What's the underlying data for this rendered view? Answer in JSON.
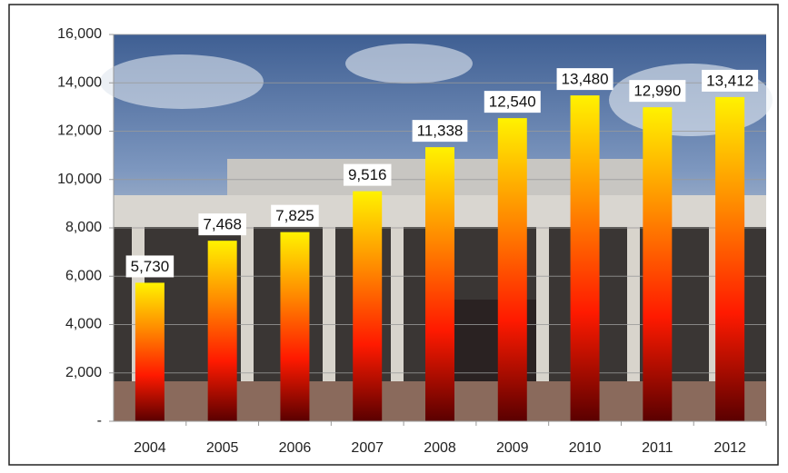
{
  "chart_data": {
    "type": "bar",
    "categories": [
      "2004",
      "2005",
      "2006",
      "2007",
      "2008",
      "2009",
      "2010",
      "2011",
      "2012"
    ],
    "values": [
      5730,
      7468,
      7825,
      9516,
      11338,
      12540,
      13480,
      12990,
      13412
    ],
    "value_labels": [
      "5,730",
      "7,468",
      "7,825",
      "9,516",
      "11,338",
      "12,540",
      "13,480",
      "12,990",
      "13,412"
    ],
    "colors": [
      "#fff200",
      "#ff8a00",
      "#ff1a00",
      "#5a0000"
    ],
    "ylim": [
      0,
      16000
    ],
    "yticks": [
      {
        "value": 0,
        "label": "-"
      },
      {
        "value": 2000,
        "label": "2,000"
      },
      {
        "value": 4000,
        "label": "4,000"
      },
      {
        "value": 6000,
        "label": "6,000"
      },
      {
        "value": 8000,
        "label": "8,000"
      },
      {
        "value": 10000,
        "label": "10,000"
      },
      {
        "value": 12000,
        "label": "12,000"
      },
      {
        "value": 14000,
        "label": "14,000"
      },
      {
        "value": 16000,
        "label": "16,000"
      }
    ],
    "grid": true
  }
}
